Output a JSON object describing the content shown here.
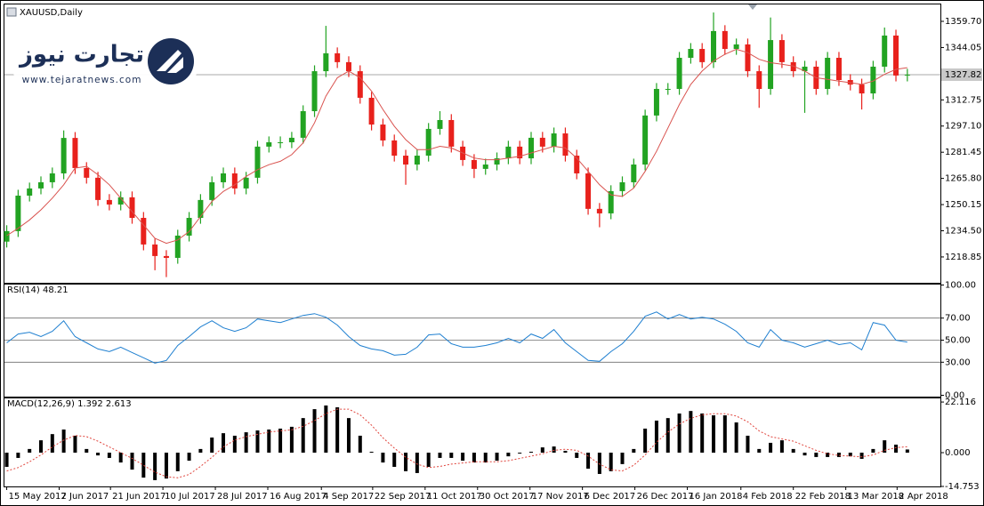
{
  "chart_data": [
    {
      "type": "candlestick",
      "title": "XAUUSD,Daily",
      "xlim": [
        -0.2,
        81.9
      ],
      "ylim": [
        1203.4,
        1369.8
      ],
      "yticks": [
        {
          "value": 1359.7,
          "label": "1359.70"
        },
        1344.05,
        1312.75,
        {
          "value": 1297.1,
          "label": "1297.10"
        },
        1281.45,
        {
          "value": 1265.8,
          "label": "1265.80"
        },
        1250.15,
        {
          "value": 1234.5,
          "label": "1234.50"
        },
        1218.85
      ],
      "up_color": "#22a322",
      "down_color": "#e8211c",
      "open": [
        1228.0,
        1234.3,
        1255.5,
        1259.8,
        1263.5,
        1268.8,
        1290.0,
        1272.0,
        1266.2,
        1252.9,
        1250.2,
        1254.5,
        1242.2,
        1226.3,
        1219.4,
        1218.3,
        1231.6,
        1242.2,
        1252.9,
        1263.5,
        1268.8,
        1259.8,
        1266.2,
        1284.8,
        1287.4,
        1287.4,
        1290.1,
        1306.0,
        1329.9,
        1340.6,
        1335.3,
        1329.9,
        1314.0,
        1298.0,
        1288.5,
        1279.4,
        1274.1,
        1279.4,
        1295.4,
        1300.7,
        1284.8,
        1276.8,
        1271.5,
        1274.1,
        1277.8,
        1284.8,
        1277.8,
        1290.1,
        1284.8,
        1292.7,
        1279.4,
        1268.8,
        1247.6,
        1244.9,
        1258.2,
        1263.5,
        1274.1,
        1303.4,
        1319.3,
        1319.3,
        1337.9,
        1343.2,
        1335.3,
        1353.9,
        1343.2,
        1345.9,
        1329.9,
        1319.3,
        1348.5,
        1335.3,
        1329.9,
        1332.6,
        1319.3,
        1337.9,
        1324.6,
        1321.9,
        1316.6,
        1332.6,
        1351.2,
        1327.3
      ],
      "high": [
        1237.8,
        1259.0,
        1263.3,
        1267.0,
        1272.3,
        1294.5,
        1293.5,
        1275.5,
        1269.7,
        1256.4,
        1258.0,
        1258.0,
        1245.7,
        1229.8,
        1222.9,
        1235.1,
        1245.7,
        1256.4,
        1267.0,
        1272.3,
        1272.3,
        1269.7,
        1288.3,
        1290.9,
        1290.9,
        1293.6,
        1309.5,
        1333.4,
        1357.0,
        1344.1,
        1338.8,
        1333.4,
        1317.5,
        1301.5,
        1292.0,
        1282.9,
        1282.9,
        1298.9,
        1306.0,
        1304.2,
        1288.3,
        1280.3,
        1277.6,
        1281.3,
        1288.3,
        1288.3,
        1293.6,
        1293.6,
        1296.2,
        1296.2,
        1282.9,
        1272.3,
        1251.1,
        1261.7,
        1267.0,
        1277.6,
        1306.9,
        1322.8,
        1322.8,
        1341.4,
        1346.7,
        1346.7,
        1365.0,
        1357.4,
        1349.4,
        1349.4,
        1333.4,
        1362.0,
        1352.0,
        1338.8,
        1336.1,
        1336.1,
        1341.4,
        1341.4,
        1328.1,
        1325.4,
        1336.1,
        1356.0,
        1354.7,
        1331.3
      ],
      "low": [
        1224.5,
        1230.8,
        1252.0,
        1256.3,
        1260.0,
        1265.3,
        1268.5,
        1262.7,
        1249.4,
        1246.7,
        1246.7,
        1238.7,
        1222.8,
        1210.9,
        1206.8,
        1214.8,
        1228.1,
        1238.7,
        1249.4,
        1260.0,
        1256.3,
        1256.3,
        1262.7,
        1281.3,
        1283.9,
        1283.9,
        1286.6,
        1302.5,
        1326.4,
        1331.8,
        1326.4,
        1310.5,
        1294.5,
        1285.0,
        1275.9,
        1262.0,
        1270.6,
        1275.9,
        1291.9,
        1281.3,
        1273.3,
        1266.0,
        1268.0,
        1270.6,
        1274.3,
        1274.3,
        1274.3,
        1281.3,
        1281.3,
        1275.9,
        1265.3,
        1244.1,
        1236.6,
        1241.4,
        1254.7,
        1260.0,
        1270.6,
        1299.9,
        1315.8,
        1315.8,
        1334.4,
        1331.8,
        1331.8,
        1339.7,
        1339.7,
        1326.4,
        1308.0,
        1315.8,
        1331.8,
        1326.4,
        1305.0,
        1315.8,
        1315.8,
        1321.1,
        1318.4,
        1307.0,
        1313.1,
        1329.1,
        1323.8,
        1323.8
      ],
      "close": [
        1234.3,
        1255.5,
        1259.8,
        1263.5,
        1268.8,
        1290.0,
        1272.0,
        1266.2,
        1252.9,
        1250.2,
        1254.5,
        1242.2,
        1226.3,
        1219.4,
        1218.3,
        1231.6,
        1242.2,
        1252.9,
        1263.5,
        1268.8,
        1259.8,
        1266.2,
        1284.8,
        1287.4,
        1287.4,
        1290.1,
        1306.0,
        1329.9,
        1340.6,
        1335.3,
        1329.9,
        1314.0,
        1298.0,
        1288.5,
        1279.4,
        1274.1,
        1279.4,
        1295.4,
        1300.7,
        1284.8,
        1276.8,
        1271.5,
        1274.1,
        1277.8,
        1284.8,
        1277.8,
        1290.1,
        1284.8,
        1292.7,
        1279.4,
        1268.8,
        1247.6,
        1244.9,
        1258.2,
        1263.5,
        1274.1,
        1303.4,
        1319.3,
        1319.3,
        1337.9,
        1343.2,
        1335.3,
        1353.9,
        1343.2,
        1345.9,
        1329.9,
        1319.3,
        1348.5,
        1335.3,
        1329.9,
        1332.6,
        1319.3,
        1337.9,
        1324.6,
        1321.9,
        1316.6,
        1332.6,
        1351.2,
        1327.3,
        1327.82
      ],
      "current_price": 1327.82,
      "moving_average": {
        "color": "#d9534f",
        "values": [
          1231.6,
          1236,
          1241,
          1247,
          1254,
          1262,
          1272,
          1273,
          1268,
          1262,
          1254,
          1246,
          1238,
          1230,
          1227,
          1229,
          1234,
          1243,
          1252,
          1258,
          1262,
          1267,
          1271,
          1274,
          1276,
          1280,
          1287,
          1299,
          1315,
          1326,
          1330,
          1326,
          1318,
          1307,
          1297,
          1289,
          1283,
          1283,
          1285,
          1284,
          1281,
          1278,
          1277,
          1277,
          1278,
          1279,
          1281,
          1283,
          1285,
          1284,
          1278,
          1270,
          1262,
          1256,
          1255,
          1260,
          1270,
          1282,
          1296,
          1310,
          1322,
          1330,
          1336,
          1340,
          1343,
          1341,
          1337,
          1335,
          1334,
          1333,
          1330,
          1326,
          1325,
          1324,
          1323,
          1322,
          1324,
          1328,
          1331,
          1332
        ]
      }
    },
    {
      "type": "line",
      "title": "RSI(14) 48.21",
      "xlim": [
        -0.2,
        81.9
      ],
      "ylim": [
        -1.2,
        100.4
      ],
      "yticks": [
        {
          "value": 100,
          "label": "100.00"
        },
        {
          "value": 70,
          "label": "70.00"
        },
        {
          "value": 50,
          "label": "50.00"
        },
        {
          "value": 30,
          "label": "30.00"
        },
        {
          "value": 0,
          "label": "0.00"
        }
      ],
      "levels": [
        70,
        50,
        30
      ],
      "series": [
        {
          "color": "#1e7fd0",
          "values": [
            47.6,
            55.6,
            57.2,
            53.2,
            58.0,
            67.6,
            53.2,
            47.6,
            42.0,
            39.6,
            43.6,
            38.8,
            34.0,
            29.2,
            31.6,
            45.2,
            53.2,
            62.0,
            67.6,
            61.2,
            58.0,
            61.2,
            69.2,
            67.6,
            66.0,
            69.2,
            72.4,
            74.0,
            70.8,
            63.6,
            53.2,
            45.2,
            42.0,
            40.4,
            36.4,
            37.2,
            43.6,
            54.8,
            55.6,
            46.8,
            43.6,
            43.6,
            45.2,
            47.6,
            51.6,
            47.6,
            55.6,
            51.6,
            59.6,
            47.6,
            39.6,
            31.6,
            30.8,
            39.6,
            46.8,
            58.0,
            71.6,
            75.6,
            69.2,
            73.2,
            69.2,
            70.8,
            69.2,
            64.4,
            58.0,
            47.6,
            43.6,
            59.6,
            50.0,
            47.6,
            43.6,
            46.8,
            50.0,
            46.0,
            47.6,
            41.2,
            66.0,
            63.6,
            50.0,
            48.21
          ]
        }
      ]
    },
    {
      "type": "macd",
      "title": "MACD(12,26,9) 1.392 2.613",
      "xlim": [
        -0.2,
        81.9
      ],
      "ylim": [
        -14.753,
        23.7
      ],
      "yticks": [
        22.116,
        {
          "value": 0,
          "label": "0.000"
        },
        -14.753
      ],
      "xticks": [
        {
          "value": 0,
          "label": "15 May 2017"
        },
        {
          "value": 4.6,
          "label": "2 Jun 2017"
        },
        {
          "value": 9.1,
          "label": "21 Jun 2017"
        },
        {
          "value": 13.7,
          "label": "10 Jul 2017"
        },
        {
          "value": 18.3,
          "label": "28 Jul 2017"
        },
        {
          "value": 22.9,
          "label": "16 Aug 2017"
        },
        {
          "value": 27.6,
          "label": "4 Sep 2017"
        },
        {
          "value": 32.1,
          "label": "22 Sep 2017"
        },
        {
          "value": 36.7,
          "label": "11 Oct 2017"
        },
        {
          "value": 41.3,
          "label": "30 Oct 2017"
        },
        {
          "value": 45.9,
          "label": "17 Nov 2017"
        },
        {
          "value": 50.5,
          "label": "6 Dec 2017"
        },
        {
          "value": 55.1,
          "label": "26 Dec 2017"
        },
        {
          "value": 59.7,
          "label": "16 Jan 2018"
        },
        {
          "value": 64.4,
          "label": "4 Feb 2018"
        },
        {
          "value": 69.0,
          "label": "22 Feb 2018"
        },
        {
          "value": 73.6,
          "label": "13 Mar 2018"
        },
        {
          "value": 78.1,
          "label": "2 Apr 2018"
        }
      ],
      "histogram": {
        "color": "#000000",
        "values": [
          -6.2,
          -2.3,
          1.6,
          5.4,
          8.1,
          10.1,
          7.4,
          1.6,
          -1.2,
          -2.3,
          -4.3,
          -7.4,
          -10.9,
          -12.0,
          -11.3,
          -8.1,
          -3.5,
          1.6,
          6.6,
          8.5,
          7.4,
          8.9,
          9.7,
          10.1,
          10.5,
          11.3,
          15.1,
          19.0,
          20.6,
          19.8,
          15.1,
          7.4,
          0.4,
          -4.3,
          -6.2,
          -8.1,
          -8.9,
          -6.2,
          -2.3,
          -2.3,
          -3.5,
          -4.3,
          -4.3,
          -3.5,
          -1.6,
          -0.4,
          0.4,
          2.3,
          2.7,
          0.8,
          -2.3,
          -7.0,
          -9.3,
          -8.1,
          -5.0,
          1.6,
          10.5,
          14.0,
          15.1,
          17.1,
          18.2,
          17.1,
          16.3,
          16.3,
          13.2,
          7.4,
          1.6,
          4.3,
          5.4,
          1.6,
          -1.2,
          -1.9,
          -1.9,
          -1.9,
          -1.6,
          -2.7,
          1.6,
          5.4,
          3.5,
          1.392
        ]
      },
      "signal": {
        "color": "#e0443c",
        "values": [
          -8,
          -6.5,
          -4,
          -1,
          2.5,
          5.5,
          7.5,
          7,
          5,
          2.5,
          0,
          -2.5,
          -5.5,
          -8.5,
          -10.5,
          -11,
          -9.5,
          -6,
          -2,
          2.5,
          5.5,
          7,
          8,
          9,
          9.5,
          10,
          11.5,
          14,
          17,
          19,
          19,
          16.5,
          12,
          6.5,
          2,
          -2,
          -5,
          -6.5,
          -6,
          -5,
          -4.5,
          -4,
          -4,
          -4,
          -3.5,
          -2.5,
          -1.5,
          -0.5,
          1,
          1.5,
          1,
          -1.5,
          -5,
          -7.5,
          -8,
          -5.5,
          -1,
          4.5,
          9,
          12.5,
          15,
          16.5,
          17,
          17,
          16,
          13.5,
          9.5,
          7,
          6,
          5,
          3,
          1,
          -0.5,
          -1.2,
          -1.5,
          -1.8,
          -1,
          1,
          2.2,
          2.613
        ]
      }
    }
  ],
  "watermark": {
    "brand": "تجارت نیوز",
    "url": "www.tejaratnews.com"
  }
}
